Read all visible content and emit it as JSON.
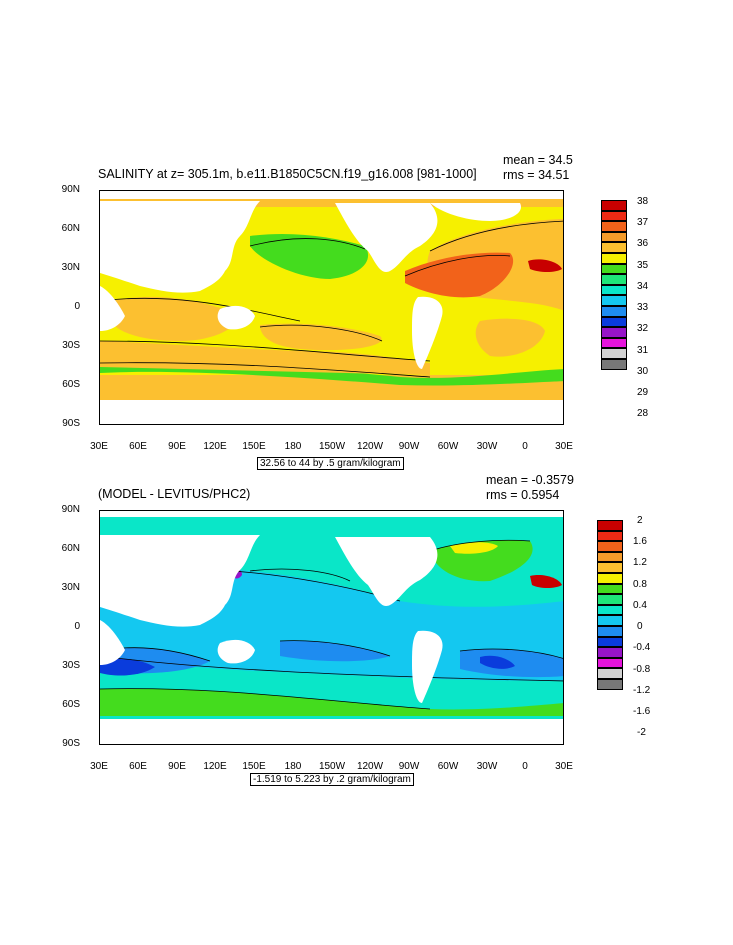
{
  "panel1": {
    "title": "SALINITY at z= 305.1m, b.e11.B1850C5CN.f19_g16.008 [981-1000]",
    "mean": "mean = 34.5",
    "rms": "rms = 34.51",
    "contour_note": "32.56 to 44 by .5 gram/kilogram",
    "lat_ticks": [
      "90N",
      "60N",
      "30N",
      "0",
      "30S",
      "60S",
      "90S"
    ],
    "lon_ticks": [
      "30E",
      "60E",
      "90E",
      "120E",
      "150E",
      "180",
      "150W",
      "120W",
      "90W",
      "60W",
      "30W",
      "0",
      "30E"
    ],
    "legend_labels": [
      "38",
      "37",
      "36",
      "35",
      "34",
      "33",
      "32",
      "31",
      "30",
      "29",
      "28"
    ],
    "legend_colors": [
      "#c80000",
      "#ee2a14",
      "#f2621a",
      "#f59b2a",
      "#fcc030",
      "#f6f000",
      "#44dc1e",
      "#1ee678",
      "#0ae6c8",
      "#14c8f0",
      "#1e8cf0",
      "#0a3cdc",
      "#9614c8",
      "#e614dc",
      "#d2d2d2",
      "#787878"
    ]
  },
  "panel2": {
    "title": "(MODEL - LEVITUS/PHC2)",
    "mean": "mean = -0.3579",
    "rms": "rms = 0.5954",
    "contour_note": "-1.519 to 5.223 by .2 gram/kilogram",
    "lat_ticks": [
      "90N",
      "60N",
      "30N",
      "0",
      "30S",
      "60S",
      "90S"
    ],
    "lon_ticks": [
      "30E",
      "60E",
      "90E",
      "120E",
      "150E",
      "180",
      "150W",
      "120W",
      "90W",
      "60W",
      "30W",
      "0",
      "30E"
    ],
    "legend_labels": [
      "2",
      "1.6",
      "1.2",
      "0.8",
      "0.4",
      "0",
      "-0.4",
      "-0.8",
      "-1.2",
      "-1.6",
      "-2"
    ],
    "legend_colors": [
      "#c80000",
      "#ee2a14",
      "#f2621a",
      "#f59b2a",
      "#fcc030",
      "#f6f000",
      "#44dc1e",
      "#1ee678",
      "#0ae6c8",
      "#14c8f0",
      "#1e8cf0",
      "#0a3cdc",
      "#9614c8",
      "#e614dc",
      "#d2d2d2",
      "#787878"
    ]
  }
}
